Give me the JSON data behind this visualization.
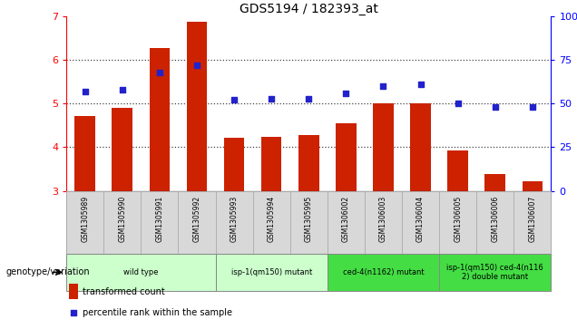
{
  "title": "GDS5194 / 182393_at",
  "samples": [
    "GSM1305989",
    "GSM1305990",
    "GSM1305991",
    "GSM1305992",
    "GSM1305993",
    "GSM1305994",
    "GSM1305995",
    "GSM1306002",
    "GSM1306003",
    "GSM1306004",
    "GSM1306005",
    "GSM1306006",
    "GSM1306007"
  ],
  "bar_values": [
    4.72,
    4.9,
    6.28,
    6.87,
    4.22,
    4.23,
    4.28,
    4.56,
    5.0,
    5.0,
    3.93,
    3.38,
    3.22
  ],
  "scatter_values": [
    57,
    58,
    68,
    72,
    52,
    53,
    53,
    56,
    60,
    61,
    50,
    48,
    48
  ],
  "bar_bottom": 3.0,
  "ylim_left": [
    3.0,
    7.0
  ],
  "ylim_right": [
    0,
    100
  ],
  "yticks_left": [
    3,
    4,
    5,
    6,
    7
  ],
  "yticks_right": [
    0,
    25,
    50,
    75,
    100
  ],
  "bar_color": "#cc2200",
  "scatter_color": "#2222cc",
  "groups": [
    {
      "label": "wild type",
      "indices": [
        0,
        1,
        2,
        3
      ],
      "color": "#ccffcc"
    },
    {
      "label": "isp-1(qm150) mutant",
      "indices": [
        4,
        5,
        6
      ],
      "color": "#ccffcc"
    },
    {
      "label": "ced-4(n1162) mutant",
      "indices": [
        7,
        8,
        9
      ],
      "color": "#44dd44"
    },
    {
      "label": "isp-1(qm150) ced-4(n116\n2) double mutant",
      "indices": [
        10,
        11,
        12
      ],
      "color": "#44dd44"
    }
  ],
  "xlabel_genotype": "genotype/variation",
  "legend_bar": "transformed count",
  "legend_scatter": "percentile rank within the sample",
  "grid_lines": [
    4,
    5,
    6
  ],
  "sample_bg_color": "#d8d8d8",
  "plot_bg": "#ffffff",
  "fig_bg": "#ffffff"
}
